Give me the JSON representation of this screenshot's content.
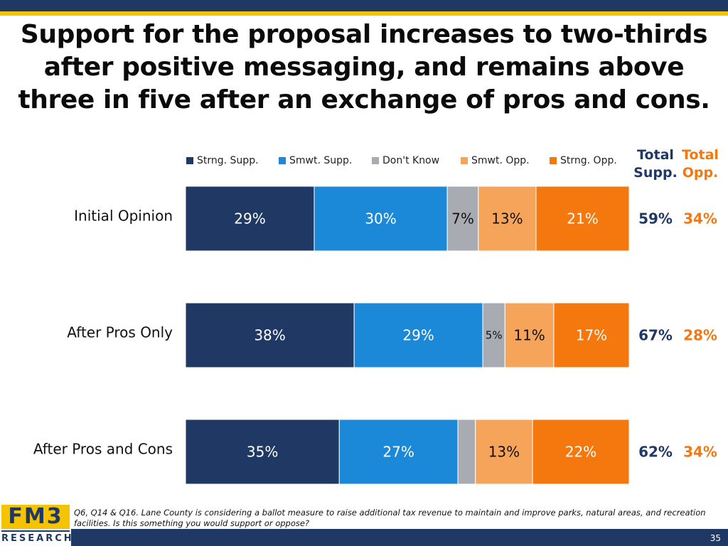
{
  "title_lines": [
    "Support for the proposal increases to two-thirds",
    "after positive messaging, and remains above",
    "three in five after an exchange of pros and cons."
  ],
  "legend": [
    {
      "label": "Strng. Supp.",
      "color": "#1f3864"
    },
    {
      "label": "Smwt. Supp.",
      "color": "#1b88d8"
    },
    {
      "label": "Don't Know",
      "color": "#a8abb2"
    },
    {
      "label": "Smwt. Opp.",
      "color": "#f7a45b"
    },
    {
      "label": "Strng. Opp.",
      "color": "#f5780f"
    }
  ],
  "totals_header": {
    "supp_line1": "Total",
    "supp_line2": "Supp.",
    "opp_line1": "Total",
    "opp_line2": "Opp."
  },
  "colors": {
    "supp_total": "#1f3864",
    "opp_total": "#f5780f",
    "label_light": "#ffffff",
    "label_dark": "#111111"
  },
  "chart_data": {
    "type": "bar",
    "orientation": "horizontal",
    "stacked": true,
    "categories": [
      "Initial Opinion",
      "After Pros Only",
      "After Pros and Cons"
    ],
    "series": [
      {
        "name": "Strng. Supp.",
        "values": [
          29,
          38,
          35
        ],
        "labels": [
          "29%",
          "38%",
          "35%"
        ]
      },
      {
        "name": "Smwt. Supp.",
        "values": [
          30,
          29,
          27
        ],
        "labels": [
          "30%",
          "29%",
          "27%"
        ]
      },
      {
        "name": "Don't Know",
        "values": [
          7,
          5,
          4
        ],
        "labels": [
          "7%",
          "5%",
          ""
        ]
      },
      {
        "name": "Smwt. Opp.",
        "values": [
          13,
          11,
          13
        ],
        "labels": [
          "13%",
          "11%",
          "13%"
        ]
      },
      {
        "name": "Strng. Opp.",
        "values": [
          21,
          17,
          22
        ],
        "labels": [
          "21%",
          "17%",
          "22%"
        ]
      }
    ],
    "total_supp": [
      "59%",
      "67%",
      "62%"
    ],
    "total_opp": [
      "34%",
      "28%",
      "34%"
    ],
    "xlim": [
      0,
      100
    ],
    "legend_position": "top"
  },
  "footnote": "Q6, Q14 & Q16. Lane County is considering a ballot measure to raise additional tax revenue to maintain and improve parks, natural areas, and recreation facilities. Is this something you would support or oppose?",
  "logo": {
    "top": "FM3",
    "bottom": "RESEARCH"
  },
  "page_number": "35"
}
